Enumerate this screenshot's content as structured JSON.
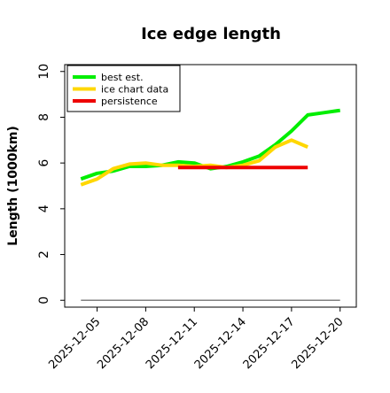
{
  "chart_data": {
    "type": "line",
    "title": "Ice edge length",
    "xlabel": "",
    "ylabel": "Length (1000km)",
    "x_tick_labels": [
      "2025-12-05",
      "2025-12-08",
      "2025-12-11",
      "2025-12-14",
      "2025-12-17",
      "2025-12-20"
    ],
    "x_tick_values": [
      "2025-12-05",
      "2025-12-08",
      "2025-12-11",
      "2025-12-14",
      "2025-12-17",
      "2025-12-20"
    ],
    "xlim": [
      "2025-12-03",
      "2025-12-21"
    ],
    "ylim": [
      -0.3,
      10.3
    ],
    "y_ticks": [
      0,
      2,
      4,
      6,
      8,
      10
    ],
    "y_tick_labels": [
      "0",
      "2",
      "4",
      "6",
      "8",
      "10"
    ],
    "grid": false,
    "legend_position": "top-left",
    "series": [
      {
        "name": "best est.",
        "color": "#00ee00",
        "x": [
          "2025-12-04",
          "2025-12-05",
          "2025-12-06",
          "2025-12-07",
          "2025-12-08",
          "2025-12-09",
          "2025-12-10",
          "2025-12-11",
          "2025-12-12",
          "2025-12-13",
          "2025-12-14",
          "2025-12-15",
          "2025-12-16",
          "2025-12-17",
          "2025-12-18",
          "2025-12-19",
          "2025-12-20"
        ],
        "y": [
          5.3,
          5.55,
          5.65,
          5.85,
          5.85,
          5.9,
          6.05,
          6.0,
          5.75,
          5.85,
          6.05,
          6.3,
          6.8,
          7.4,
          8.1,
          8.2,
          8.3
        ]
      },
      {
        "name": "ice chart data",
        "color": "#ffd700",
        "x": [
          "2025-12-04",
          "2025-12-05",
          "2025-12-06",
          "2025-12-07",
          "2025-12-08",
          "2025-12-09",
          "2025-12-10",
          "2025-12-11",
          "2025-12-12",
          "2025-12-13",
          "2025-12-14",
          "2025-12-15",
          "2025-12-16",
          "2025-12-17",
          "2025-12-18"
        ],
        "y": [
          5.05,
          5.3,
          5.75,
          5.95,
          6.0,
          5.9,
          5.9,
          5.85,
          5.9,
          5.8,
          5.9,
          6.1,
          6.7,
          7.0,
          6.7
        ]
      },
      {
        "name": "persistence",
        "color": "#ee0000",
        "x": [
          "2025-12-10",
          "2025-12-18"
        ],
        "y": [
          5.8,
          5.8
        ]
      },
      {
        "name": "",
        "color": "#808080",
        "x": [
          "2025-12-04",
          "2025-12-20"
        ],
        "y": [
          0,
          0
        ]
      }
    ]
  }
}
